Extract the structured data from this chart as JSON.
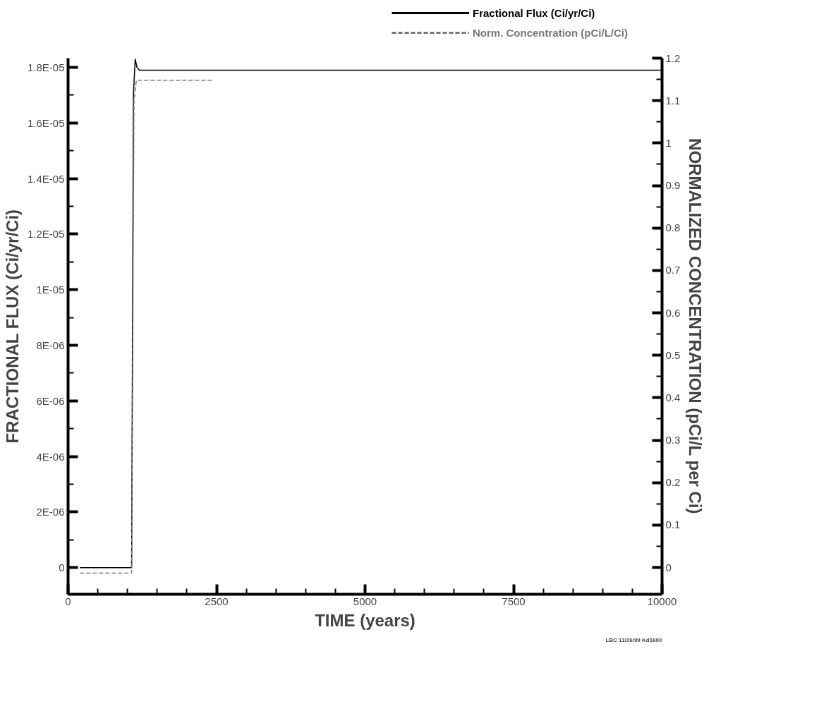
{
  "chart_data": {
    "type": "line",
    "xlabel": "TIME (years)",
    "ylabel": "FRACTIONAL FLUX (Ci/yr/Ci)",
    "y2label": "NORMALIZED CONCENTRATION (pCi/L per Ci)",
    "xlim": [
      0,
      10000
    ],
    "xticks": [
      0,
      2500,
      5000,
      7500,
      10000
    ],
    "ylim": [
      -9.6e-07,
      1.833e-05
    ],
    "yticks": [
      {
        "value": 0,
        "label": "0"
      },
      {
        "value": 2e-06,
        "label": "2E-06"
      },
      {
        "value": 4e-06,
        "label": "4E-06"
      },
      {
        "value": 6e-06,
        "label": "6E-06"
      },
      {
        "value": 8e-06,
        "label": "8E-06"
      },
      {
        "value": 1e-05,
        "label": "1E-05"
      },
      {
        "value": 1.2e-05,
        "label": "1.2E-05"
      },
      {
        "value": 1.4e-05,
        "label": "1.4E-05"
      },
      {
        "value": 1.6e-05,
        "label": "1.6E-05"
      },
      {
        "value": 1.8e-05,
        "label": "1.8E-05"
      }
    ],
    "y2lim": [
      -0.063,
      1.2
    ],
    "y2ticks": [
      0,
      0.1,
      0.2,
      0.3,
      0.4,
      0.5,
      0.6,
      0.7,
      0.8,
      0.9,
      1,
      1.1,
      1.2
    ],
    "grid": false,
    "legend": "top right",
    "series": [
      {
        "name": "Fractional Flux (Ci/yr/Ci)",
        "color": "#000000",
        "line_style": "solid",
        "x": [
          200,
          1070,
          1100,
          1130,
          1160,
          1200,
          1300,
          10000
        ],
        "values": [
          0,
          0,
          1.7e-05,
          1.83e-05,
          1.8e-05,
          1.79e-05,
          1.79e-05,
          1.79e-05
        ]
      },
      {
        "name": "Norm. Concentration (pCi/L/Ci)",
        "color": "#777777",
        "line_style": "dashed",
        "axis": "y2",
        "x": [
          200,
          1070,
          1110,
          1150,
          2460
        ],
        "values": [
          -0.013,
          -0.013,
          1.1,
          1.148,
          1.148
        ]
      }
    ],
    "annotations": [
      "LBC 11/26/99 Kd1600"
    ]
  }
}
